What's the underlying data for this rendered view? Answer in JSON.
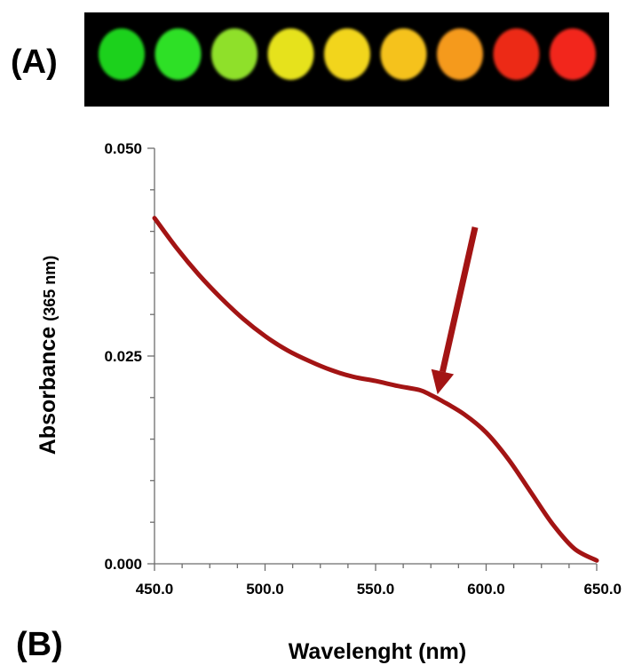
{
  "panel_a": {
    "label": "(A)",
    "spot_colors": [
      "#1fd11a",
      "#2ee028",
      "#8fe02a",
      "#e6e21e",
      "#f2d51a",
      "#f5c21a",
      "#f59a1c",
      "#ec2a18",
      "#f2261a"
    ],
    "background": "#000000"
  },
  "panel_b_label": "(B)",
  "colors": {
    "curve": "#a31414",
    "arrow": "#a31414"
  },
  "chart_data": {
    "type": "line",
    "x": [
      450,
      460,
      470,
      480,
      490,
      500,
      510,
      520,
      530,
      540,
      550,
      560,
      570,
      575,
      580,
      590,
      600,
      610,
      620,
      630,
      640,
      650
    ],
    "series": [
      {
        "values": [
          0.0416,
          0.038,
          0.0348,
          0.032,
          0.0295,
          0.0274,
          0.0257,
          0.0244,
          0.0233,
          0.0225,
          0.022,
          0.0214,
          0.0209,
          0.0203,
          0.0196,
          0.018,
          0.0158,
          0.0126,
          0.0087,
          0.0048,
          0.0018,
          0.0004
        ]
      }
    ],
    "xlabel": "Wavelenght (nm)",
    "ylabel": "Absorbance",
    "ylabel_unit": "(365 nm)",
    "xlim": [
      450,
      650
    ],
    "ylim": [
      0,
      0.05
    ],
    "x_ticks": [
      "450.0",
      "500.0",
      "550.0",
      "600.0",
      "650.0"
    ],
    "y_ticks": [
      "0.000",
      "0.025",
      "0.050"
    ],
    "annotation": {
      "type": "arrow",
      "from": [
        595,
        0.0405
      ],
      "to": [
        578,
        0.0204
      ]
    },
    "grid": false,
    "legend": "none"
  }
}
